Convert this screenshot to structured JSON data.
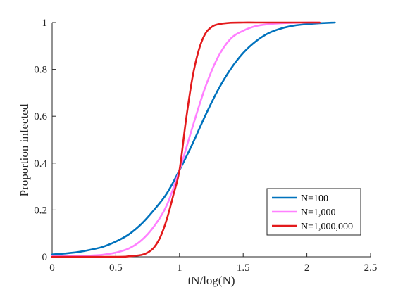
{
  "chart_data": {
    "type": "line",
    "title": "",
    "xlabel": "tN/log(N)",
    "ylabel": "Proportion infected",
    "xlim": [
      0,
      2.5
    ],
    "ylim": [
      0,
      1
    ],
    "xticks": [
      "0",
      "0.5",
      "1",
      "1.5",
      "2",
      "2.5"
    ],
    "yticks": [
      "0",
      "0.2",
      "0.4",
      "0.6",
      "0.8",
      "1"
    ],
    "grid": false,
    "legend_position": "bottom-right",
    "series": [
      {
        "name": "N=100",
        "color": "#0072BD",
        "x": [
          0,
          0.1,
          0.2,
          0.3,
          0.4,
          0.5,
          0.6,
          0.7,
          0.8,
          0.9,
          1.0,
          1.1,
          1.2,
          1.3,
          1.4,
          1.5,
          1.6,
          1.7,
          1.8,
          1.9,
          2.0,
          2.1,
          2.22
        ],
        "y": [
          0.01,
          0.014,
          0.02,
          0.03,
          0.043,
          0.065,
          0.095,
          0.14,
          0.2,
          0.27,
          0.37,
          0.48,
          0.6,
          0.71,
          0.8,
          0.87,
          0.92,
          0.955,
          0.975,
          0.987,
          0.993,
          0.997,
          1.0
        ]
      },
      {
        "name": "N=1,000",
        "color": "#FF80FF",
        "x": [
          0,
          0.2,
          0.3,
          0.4,
          0.5,
          0.6,
          0.7,
          0.8,
          0.9,
          1.0,
          1.1,
          1.2,
          1.3,
          1.4,
          1.5,
          1.6,
          1.7,
          1.8,
          1.9,
          2.0,
          2.1
        ],
        "y": [
          0.002,
          0.003,
          0.005,
          0.009,
          0.018,
          0.035,
          0.07,
          0.13,
          0.22,
          0.37,
          0.55,
          0.72,
          0.85,
          0.93,
          0.965,
          0.985,
          0.993,
          0.997,
          0.999,
          1.0,
          1.0
        ]
      },
      {
        "name": "N=1,000,000",
        "color": "#E31A1C",
        "x": [
          0,
          0.5,
          0.6,
          0.7,
          0.75,
          0.8,
          0.85,
          0.9,
          0.95,
          1.0,
          1.05,
          1.1,
          1.15,
          1.2,
          1.25,
          1.3,
          1.4,
          1.5,
          1.6,
          1.8,
          2.0,
          2.1
        ],
        "y": [
          0.0,
          0.0,
          0.002,
          0.008,
          0.018,
          0.04,
          0.085,
          0.16,
          0.26,
          0.37,
          0.58,
          0.76,
          0.88,
          0.95,
          0.98,
          0.992,
          0.999,
          1.0,
          1.0,
          1.0,
          1.0,
          1.0
        ]
      }
    ]
  }
}
